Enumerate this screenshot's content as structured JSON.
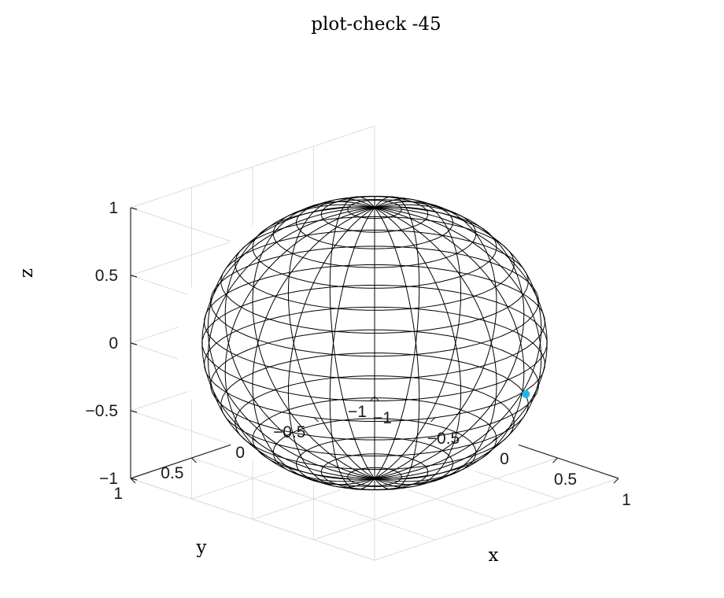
{
  "chart_data": {
    "type": "surface-mesh",
    "title": "plot-check -45",
    "xlabel": "x",
    "ylabel": "y",
    "zlabel": "z",
    "xlim": [
      -1,
      1
    ],
    "ylim": [
      -1,
      1
    ],
    "zlim": [
      -1,
      1
    ],
    "x_ticks": [
      -1,
      -0.5,
      0,
      0.5,
      1
    ],
    "y_ticks": [
      -1,
      -0.5,
      0,
      0.5,
      1
    ],
    "z_ticks": [
      -1,
      -0.5,
      0,
      0.5,
      1
    ],
    "x_tick_labels": [
      "−1",
      "−0.5",
      "0",
      "0.5",
      "1"
    ],
    "y_tick_labels": [
      "−1",
      "−0.5",
      "0",
      "0.5",
      "1"
    ],
    "z_tick_labels": [
      "−1",
      "−0.5",
      "0",
      "0.5",
      "1"
    ],
    "grid": true,
    "view": {
      "azimuth": -45,
      "elevation": 30
    },
    "surface": {
      "shape": "unit sphere",
      "radius": 1,
      "meridians": 24,
      "parallels": 20,
      "edge_color": "#000000",
      "face_color": "#ffffff"
    },
    "marker": {
      "x": 0.5,
      "y": -0.74,
      "z": -0.45,
      "color": "#1fb8e6"
    }
  }
}
